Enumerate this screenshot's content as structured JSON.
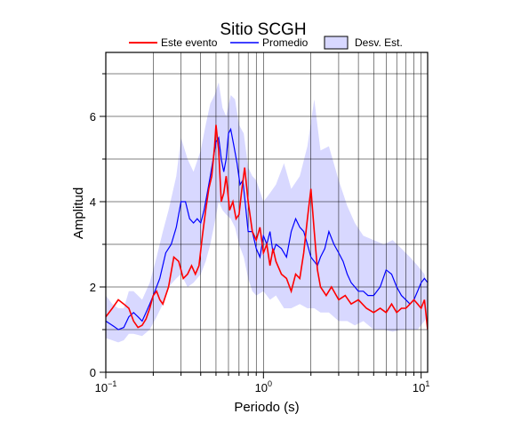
{
  "chart_data": {
    "type": "line",
    "title": "Sitio SCGH",
    "xlabel": "Periodo (s)",
    "ylabel": "Amplitud",
    "xscale": "log",
    "xlim": [
      0.1,
      11
    ],
    "ylim": [
      0,
      7.5
    ],
    "x_ticks": [
      {
        "value": 0.1,
        "base": "10",
        "exp": "−1"
      },
      {
        "value": 1,
        "base": "10",
        "exp": "0"
      },
      {
        "value": 10,
        "base": "10",
        "exp": "1"
      }
    ],
    "y_ticks": [
      0,
      2,
      4,
      6
    ],
    "y_minor_ticks": [
      1,
      3,
      5,
      7
    ],
    "grid": true,
    "legend_position": "top",
    "legend": {
      "entries": [
        {
          "label": "Este evento",
          "kind": "line",
          "color": "#ff0000"
        },
        {
          "label": "Promedio",
          "kind": "line",
          "color": "#0000ff"
        },
        {
          "label": "Desv. Est.",
          "kind": "box",
          "color": "#d8d8ff"
        }
      ]
    },
    "colors": {
      "event": "#ff0000",
      "mean": "#0000ff",
      "band": "#d8d8ff",
      "grid": "#000000"
    },
    "series": [
      {
        "name": "Este evento",
        "x": [
          0.1,
          0.11,
          0.12,
          0.13,
          0.14,
          0.15,
          0.16,
          0.17,
          0.18,
          0.19,
          0.2,
          0.21,
          0.22,
          0.23,
          0.25,
          0.27,
          0.29,
          0.31,
          0.33,
          0.35,
          0.37,
          0.39,
          0.41,
          0.43,
          0.45,
          0.47,
          0.49,
          0.5,
          0.52,
          0.54,
          0.56,
          0.58,
          0.61,
          0.64,
          0.67,
          0.7,
          0.73,
          0.76,
          0.8,
          0.85,
          0.9,
          0.95,
          1.0,
          1.05,
          1.1,
          1.15,
          1.2,
          1.3,
          1.4,
          1.5,
          1.6,
          1.7,
          1.8,
          1.9,
          2.0,
          2.1,
          2.2,
          2.3,
          2.5,
          2.7,
          3.0,
          3.3,
          3.6,
          4.0,
          4.5,
          5.0,
          5.5,
          6.0,
          6.5,
          7.0,
          7.5,
          8.0,
          8.5,
          9.0,
          9.5,
          10.0,
          10.5,
          11.0
        ],
        "y": [
          1.3,
          1.5,
          1.7,
          1.6,
          1.5,
          1.2,
          1.05,
          1.1,
          1.25,
          1.5,
          1.8,
          1.9,
          1.7,
          1.6,
          2.0,
          2.7,
          2.6,
          2.2,
          2.3,
          2.5,
          2.3,
          2.5,
          3.2,
          3.8,
          4.3,
          4.6,
          5.3,
          5.8,
          5.2,
          4.0,
          4.2,
          4.6,
          3.8,
          4.0,
          3.6,
          3.7,
          4.3,
          4.8,
          4.0,
          3.3,
          3.1,
          3.4,
          2.8,
          3.0,
          2.5,
          2.9,
          2.6,
          2.3,
          2.2,
          1.9,
          2.3,
          2.2,
          2.8,
          3.6,
          4.3,
          3.3,
          2.4,
          2.0,
          1.8,
          2.0,
          1.7,
          1.8,
          1.6,
          1.7,
          1.5,
          1.4,
          1.5,
          1.4,
          1.6,
          1.4,
          1.5,
          1.5,
          1.6,
          1.7,
          1.6,
          1.5,
          1.7,
          1.0
        ]
      },
      {
        "name": "Promedio",
        "x": [
          0.1,
          0.11,
          0.12,
          0.13,
          0.14,
          0.15,
          0.16,
          0.17,
          0.18,
          0.19,
          0.2,
          0.22,
          0.24,
          0.26,
          0.28,
          0.3,
          0.32,
          0.34,
          0.36,
          0.38,
          0.4,
          0.42,
          0.44,
          0.46,
          0.48,
          0.5,
          0.52,
          0.54,
          0.56,
          0.58,
          0.6,
          0.62,
          0.65,
          0.68,
          0.71,
          0.74,
          0.77,
          0.8,
          0.85,
          0.9,
          0.95,
          1.0,
          1.05,
          1.1,
          1.15,
          1.2,
          1.3,
          1.4,
          1.5,
          1.6,
          1.7,
          1.8,
          1.9,
          2.0,
          2.1,
          2.2,
          2.3,
          2.45,
          2.6,
          2.8,
          3.0,
          3.2,
          3.4,
          3.6,
          3.8,
          4.0,
          4.3,
          4.6,
          5.0,
          5.5,
          6.0,
          6.5,
          7.0,
          7.5,
          8.0,
          8.5,
          9.0,
          9.5,
          10.0,
          10.5,
          11.0
        ],
        "y": [
          1.2,
          1.1,
          1.0,
          1.05,
          1.3,
          1.4,
          1.3,
          1.2,
          1.4,
          1.6,
          1.8,
          2.2,
          2.8,
          3.0,
          3.4,
          4.0,
          4.0,
          3.6,
          3.5,
          3.6,
          3.5,
          3.8,
          4.2,
          4.6,
          5.0,
          5.4,
          5.5,
          5.0,
          4.7,
          5.0,
          5.6,
          5.7,
          5.3,
          4.9,
          4.4,
          4.5,
          3.9,
          3.3,
          3.3,
          2.9,
          2.7,
          3.2,
          3.0,
          3.3,
          2.8,
          3.0,
          2.9,
          2.7,
          3.3,
          3.6,
          3.4,
          3.3,
          3.0,
          2.7,
          2.6,
          2.5,
          2.7,
          2.9,
          3.3,
          3.0,
          2.8,
          2.6,
          2.3,
          2.1,
          2.0,
          1.9,
          1.9,
          1.8,
          1.8,
          2.0,
          2.4,
          2.3,
          2.0,
          1.8,
          1.7,
          1.6,
          1.7,
          1.9,
          2.1,
          2.2,
          2.1
        ]
      }
    ],
    "band": {
      "name": "Desv. Est.",
      "x": [
        0.1,
        0.11,
        0.12,
        0.13,
        0.14,
        0.15,
        0.17,
        0.19,
        0.21,
        0.23,
        0.25,
        0.28,
        0.3,
        0.33,
        0.36,
        0.4,
        0.43,
        0.46,
        0.49,
        0.52,
        0.55,
        0.58,
        0.62,
        0.66,
        0.7,
        0.75,
        0.8,
        0.85,
        0.9,
        1.0,
        1.1,
        1.2,
        1.35,
        1.5,
        1.7,
        1.9,
        2.1,
        2.3,
        2.6,
        3.0,
        3.4,
        3.8,
        4.3,
        5.0,
        5.8,
        6.6,
        7.5,
        8.5,
        9.5,
        10.5,
        11.0
      ],
      "upper": [
        1.8,
        1.6,
        1.5,
        1.5,
        1.9,
        1.9,
        1.7,
        2.1,
        2.7,
        3.3,
        3.8,
        4.6,
        5.5,
        5.0,
        4.7,
        5.2,
        5.8,
        6.3,
        6.5,
        6.8,
        6.2,
        6.0,
        6.5,
        6.4,
        5.8,
        5.6,
        4.8,
        4.6,
        4.5,
        4.0,
        4.2,
        4.4,
        4.9,
        4.3,
        4.6,
        5.3,
        6.4,
        5.2,
        5.3,
        4.5,
        3.9,
        3.5,
        3.2,
        3.1,
        3.0,
        3.1,
        2.9,
        2.7,
        2.5,
        2.3,
        2.0
      ],
      "lower": [
        0.8,
        0.75,
        0.7,
        0.75,
        0.9,
        0.9,
        0.85,
        1.0,
        1.3,
        1.6,
        2.0,
        2.2,
        2.3,
        2.0,
        2.1,
        2.3,
        2.6,
        3.0,
        3.5,
        4.0,
        3.8,
        3.7,
        3.6,
        3.4,
        3.0,
        2.7,
        2.2,
        1.9,
        1.8,
        1.9,
        1.7,
        1.8,
        1.5,
        1.5,
        1.6,
        1.5,
        1.5,
        1.4,
        1.4,
        1.2,
        1.2,
        1.1,
        1.2,
        1.0,
        1.0,
        0.95,
        1.0,
        1.0,
        1.0,
        1.2,
        1.3
      ]
    }
  }
}
